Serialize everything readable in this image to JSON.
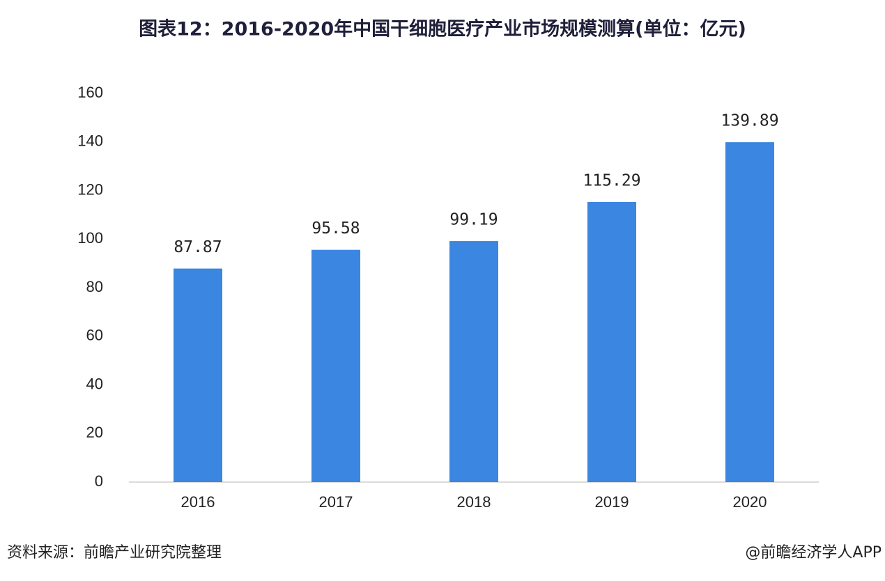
{
  "chart_data": {
    "type": "bar",
    "title": "图表12：2016-2020年中国干细胞医疗产业市场规模测算(单位：亿元)",
    "categories": [
      "2016",
      "2017",
      "2018",
      "2019",
      "2020"
    ],
    "values": [
      87.87,
      95.58,
      99.19,
      115.29,
      139.89
    ],
    "color": "#3a86e0",
    "ylim": [
      0,
      160
    ],
    "yticks": [
      0,
      20,
      40,
      60,
      80,
      100,
      120,
      140,
      160
    ],
    "grid": false,
    "source": "资料来源：前瞻产业研究院整理",
    "credit": "@前瞻经济学人APP"
  }
}
